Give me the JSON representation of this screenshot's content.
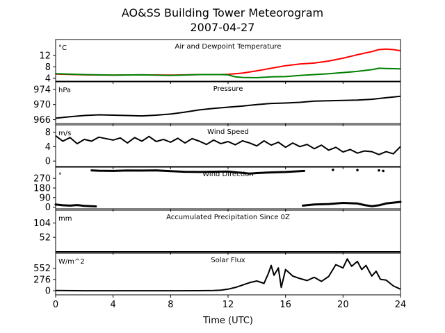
{
  "figure": {
    "title_line1": "AO&SS Building Tower Meteorogram",
    "title_line2": "2007-04-27",
    "xlabel": "Time (UTC)",
    "x_range": [
      0,
      24
    ],
    "x_ticks": [
      0,
      4,
      8,
      12,
      16,
      20,
      24
    ]
  },
  "chart_data": [
    {
      "type": "line",
      "title": "Air and Dewpoint Temperature",
      "unit": "°C",
      "ylim": [
        3.0,
        17.5
      ],
      "yticks": [
        4,
        8,
        12
      ],
      "series": [
        {
          "color": "#ff0000",
          "x": [
            0,
            2,
            4,
            6,
            8,
            10,
            11.5,
            12,
            13,
            14,
            15,
            16,
            17,
            18,
            19,
            20,
            21,
            22,
            22.5,
            23,
            23.5,
            24
          ],
          "y": [
            5.5,
            5.2,
            5.1,
            5.2,
            5.1,
            5.3,
            5.3,
            5.4,
            5.8,
            6.6,
            7.5,
            8.4,
            9.0,
            9.3,
            10.0,
            11.0,
            12.2,
            13.3,
            14.0,
            14.2,
            14.0,
            13.6
          ]
        },
        {
          "color": "#008000",
          "x": [
            0,
            2,
            4,
            6,
            8,
            10,
            11.5,
            12,
            12.5,
            13,
            14,
            15,
            16,
            17,
            18,
            19,
            20,
            21,
            22,
            22.5,
            23,
            24
          ],
          "y": [
            5.6,
            5.3,
            5.1,
            5.2,
            5.0,
            5.3,
            5.3,
            5.2,
            4.5,
            4.3,
            4.2,
            4.5,
            4.6,
            5.0,
            5.3,
            5.6,
            6.0,
            6.4,
            7.0,
            7.5,
            7.4,
            7.3
          ]
        }
      ]
    },
    {
      "type": "line",
      "title": "Pressure",
      "unit": "hPa",
      "ylim": [
        965,
        976
      ],
      "yticks": [
        966,
        970,
        974
      ],
      "series": [
        {
          "color": "#000000",
          "x": [
            0,
            1,
            2,
            3,
            4,
            5,
            6,
            7,
            8,
            9,
            10,
            11,
            12,
            13,
            14,
            15,
            16,
            17,
            18,
            19,
            20,
            21,
            22,
            23,
            24
          ],
          "y": [
            966.4,
            966.8,
            967.1,
            967.3,
            967.2,
            967.1,
            967.0,
            967.2,
            967.5,
            968.0,
            968.6,
            969.0,
            969.3,
            969.6,
            970.0,
            970.3,
            970.4,
            970.6,
            970.9,
            971.0,
            971.1,
            971.2,
            971.4,
            971.8,
            972.2
          ]
        }
      ]
    },
    {
      "type": "line",
      "title": "Wind Speed",
      "unit": "m/s",
      "ylim": [
        -1.5,
        10
      ],
      "yticks": [
        0,
        4,
        8
      ],
      "series": [
        {
          "color": "#000000",
          "x": [
            0,
            0.5,
            1,
            1.5,
            2,
            2.5,
            3,
            3.5,
            4,
            4.5,
            5,
            5.5,
            6,
            6.5,
            7,
            7.5,
            8,
            8.5,
            9,
            9.5,
            10,
            10.5,
            11,
            11.5,
            12,
            12.5,
            13,
            13.5,
            14,
            14.5,
            15,
            15.5,
            16,
            16.5,
            17,
            17.5,
            18,
            18.5,
            19,
            19.5,
            20,
            20.5,
            21,
            21.5,
            22,
            22.5,
            23,
            23.5,
            24
          ],
          "y": [
            7.0,
            5.5,
            6.5,
            4.8,
            6.0,
            5.5,
            6.6,
            6.2,
            5.8,
            6.4,
            5.0,
            6.5,
            5.5,
            6.8,
            5.4,
            6.0,
            5.2,
            6.3,
            5.0,
            6.2,
            5.5,
            4.6,
            5.8,
            4.8,
            5.4,
            4.5,
            5.6,
            5.0,
            4.2,
            5.6,
            4.4,
            5.2,
            3.8,
            5.0,
            4.0,
            4.6,
            3.4,
            4.4,
            3.0,
            3.8,
            2.5,
            3.2,
            2.2,
            2.8,
            2.6,
            1.8,
            2.6,
            2.0,
            4.0
          ]
        }
      ]
    },
    {
      "type": "scatter",
      "title": "Wind Direction",
      "unit": "°",
      "ylim": [
        -15,
        375
      ],
      "yticks": [
        0,
        90,
        180,
        270
      ],
      "series": [
        {
          "color": "#000000",
          "segments": [
            {
              "x": [
                0,
                0.5,
                1,
                1.5,
                2,
                2.5,
                2.8
              ],
              "y": [
                25,
                18,
                15,
                20,
                12,
                10,
                8
              ]
            },
            {
              "x": [
                2.5,
                3,
                4,
                5,
                6,
                7,
                8,
                9,
                10,
                11,
                12,
                13,
                13.5,
                14,
                15,
                16,
                17,
                17.3
              ],
              "y": [
                345,
                342,
                340,
                344,
                343,
                345,
                338,
                332,
                330,
                333,
                335,
                322,
                315,
                320,
                326,
                330,
                338,
                340
              ]
            },
            {
              "x": [
                17.2,
                18,
                19,
                20,
                21,
                21.5,
                22,
                22.5,
                23,
                24
              ],
              "y": [
                15,
                25,
                30,
                40,
                35,
                20,
                10,
                18,
                35,
                50
              ]
            }
          ],
          "points": {
            "x": [
              19.3,
              21,
              22.5,
              22.8
            ],
            "y": [
              350,
              348,
              345,
              340
            ]
          }
        }
      ]
    },
    {
      "type": "line",
      "title": "Accumulated Precipitation Since 0Z",
      "unit": "mm",
      "ylim": [
        0,
        150
      ],
      "yticks": [
        52,
        104
      ],
      "series": [
        {
          "color": "#000000",
          "x": [
            0,
            24
          ],
          "y": [
            0,
            0
          ]
        }
      ]
    },
    {
      "type": "line",
      "title": "Solar Flux",
      "unit": "W/m^2",
      "ylim": [
        -100,
        920
      ],
      "yticks": [
        0,
        276,
        552
      ],
      "series": [
        {
          "color": "#000000",
          "x": [
            0,
            2,
            4,
            6,
            8,
            10,
            11,
            11.5,
            12,
            12.5,
            13,
            13.5,
            14,
            14.5,
            14.8,
            15,
            15.2,
            15.5,
            15.7,
            16,
            16.5,
            17,
            17.5,
            18,
            18.5,
            19,
            19.5,
            20,
            20.3,
            20.6,
            21,
            21.3,
            21.6,
            22,
            22.3,
            22.6,
            23,
            23.5,
            24
          ],
          "y": [
            5,
            0,
            0,
            0,
            0,
            2,
            5,
            15,
            40,
            80,
            140,
            200,
            240,
            180,
            420,
            620,
            380,
            560,
            80,
            520,
            360,
            300,
            250,
            330,
            230,
            350,
            640,
            560,
            780,
            600,
            720,
            520,
            620,
            360,
            480,
            280,
            260,
            120,
            40
          ]
        }
      ]
    }
  ]
}
